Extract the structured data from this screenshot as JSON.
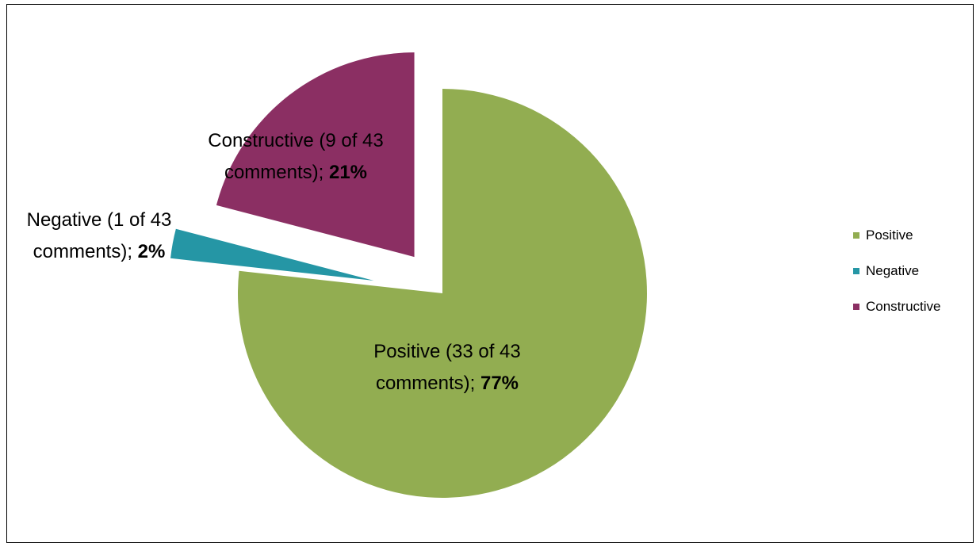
{
  "chart_data": {
    "type": "pie",
    "exploded": true,
    "total_comments": 43,
    "slices": [
      {
        "name": "Positive",
        "count": 33,
        "percent": 77,
        "color": "#92AD51",
        "label_line1": "Positive (33 of 43",
        "label_line2_text": "comments); ",
        "label_pct": "77%"
      },
      {
        "name": "Negative",
        "count": 1,
        "percent": 2,
        "color": "#2596A5",
        "label_line1": "Negative (1 of 43",
        "label_line2_text": "comments); ",
        "label_pct": "2%"
      },
      {
        "name": "Constructive",
        "count": 9,
        "percent": 21,
        "color": "#8B2F63",
        "label_line1": "Constructive (9 of 43",
        "label_line2_text": "comments); ",
        "label_pct": "21%"
      }
    ],
    "legend": {
      "position": "right",
      "entries": [
        "Positive",
        "Negative",
        "Constructive"
      ]
    }
  }
}
